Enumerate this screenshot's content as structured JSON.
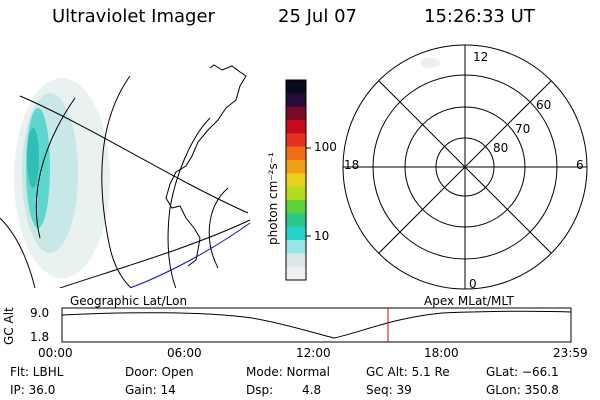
{
  "header": {
    "instrument": "Ultraviolet Imager",
    "date": "25 Jul 07",
    "time": "15:26:33 UT"
  },
  "geo_panel": {
    "label": "Geographic Lat/Lon"
  },
  "colorbar": {
    "unit_label": "photon cm⁻²s⁻¹",
    "ticks": [
      "100",
      "10"
    ],
    "colors": [
      "#0a0a1e",
      "#2a0a3a",
      "#7a0a2a",
      "#c80a1e",
      "#e4321e",
      "#f06e14",
      "#f0a014",
      "#e6d21e",
      "#b4dc1e",
      "#5ad23c",
      "#28c88c",
      "#28d2c8",
      "#96e6e6",
      "#dce6e6",
      "#f0f0f0"
    ]
  },
  "polar_panel": {
    "label": "Apex MLat/MLT",
    "mlt_labels": {
      "top": "12",
      "bottom": "0",
      "left": "18",
      "right": "6"
    },
    "lat_labels": [
      "60",
      "70",
      "80"
    ]
  },
  "altitude_plot": {
    "ylabel": "GC Alt",
    "y_ticks": [
      "9.0",
      "1.8"
    ],
    "x_ticks": [
      "00:00",
      "06:00",
      "12:00",
      "18:00",
      "23:59"
    ],
    "current_time_marker_color": "#e00000"
  },
  "status": {
    "filter": "Flt: LBHL",
    "door": "Door: Open",
    "mode": "Mode: Normal",
    "gc_alt": "GC Alt: 5.1 Re",
    "glat": "GLat: −66.1",
    "ip": "IP: 36.0",
    "gain": "Gain: 14",
    "dsp_label": "Dsp:",
    "dsp_value": "4.8",
    "seq": "Seq: 39",
    "glon": "GLon: 350.8"
  }
}
